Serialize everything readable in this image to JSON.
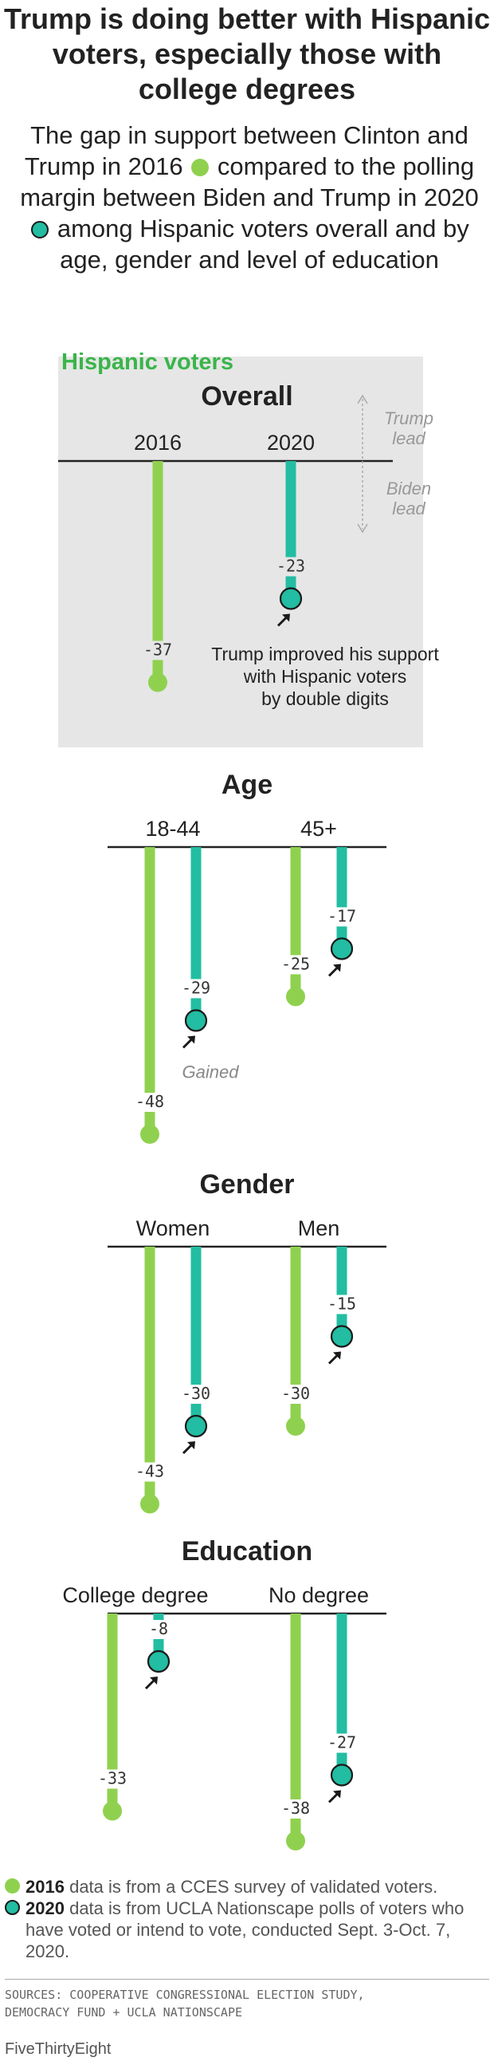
{
  "title": "Trump is doing better with Hispanic voters, especially those with college degrees",
  "subtitle": {
    "part1": "The gap in support between Clinton and Trump in 2016",
    "part2": "compared to the polling margin between Biden and Trump in 2020",
    "part3": "among Hispanic voters overall and by age, gender and level of education"
  },
  "colors": {
    "y2016": "#8fd14f",
    "y2020": "#22bda2",
    "panel": "#e6e6e6",
    "arrow": "#1a1a1a"
  },
  "chart_data": [
    {
      "type": "bar",
      "title": "Overall",
      "label": "Hispanic voters",
      "groups": [
        {
          "name": "",
          "categories": [
            "2016",
            "2020"
          ],
          "values": [
            -37,
            -23
          ]
        }
      ],
      "axis_labels": {
        "positive": "Trump lead",
        "negative": "Biden lead"
      },
      "annotation": "Trump improved his support with Hispanic voters by double digits"
    },
    {
      "type": "bar",
      "title": "Age",
      "groups": [
        {
          "name": "18-44",
          "categories": [
            "2016",
            "2020"
          ],
          "values": [
            -48,
            -29
          ],
          "note": "Gained"
        },
        {
          "name": "45+",
          "categories": [
            "2016",
            "2020"
          ],
          "values": [
            -25,
            -17
          ]
        }
      ]
    },
    {
      "type": "bar",
      "title": "Gender",
      "groups": [
        {
          "name": "Women",
          "categories": [
            "2016",
            "2020"
          ],
          "values": [
            -43,
            -30
          ]
        },
        {
          "name": "Men",
          "categories": [
            "2016",
            "2020"
          ],
          "values": [
            -30,
            -15
          ]
        }
      ]
    },
    {
      "type": "bar",
      "title": "Education",
      "groups": [
        {
          "name": "College degree",
          "categories": [
            "2016",
            "2020"
          ],
          "values": [
            -33,
            -8
          ]
        },
        {
          "name": "No degree",
          "categories": [
            "2016",
            "2020"
          ],
          "values": [
            -38,
            -27
          ]
        }
      ]
    }
  ],
  "legend": {
    "y2016_year": "2016",
    "y2016_text": "data is from a CCES survey of validated voters.",
    "y2020_year": "2020",
    "y2020_text": "data is from UCLA Nationscape polls of voters who have voted or intend to vote, conducted Sept. 3-Oct. 7, 2020."
  },
  "sources": {
    "line1": "SOURCES: COOPERATIVE CONGRESSIONAL ELECTION STUDY,",
    "line2": "DEMOCRACY FUND + UCLA NATIONSCAPE"
  },
  "brand": "FiveThirtyEight"
}
